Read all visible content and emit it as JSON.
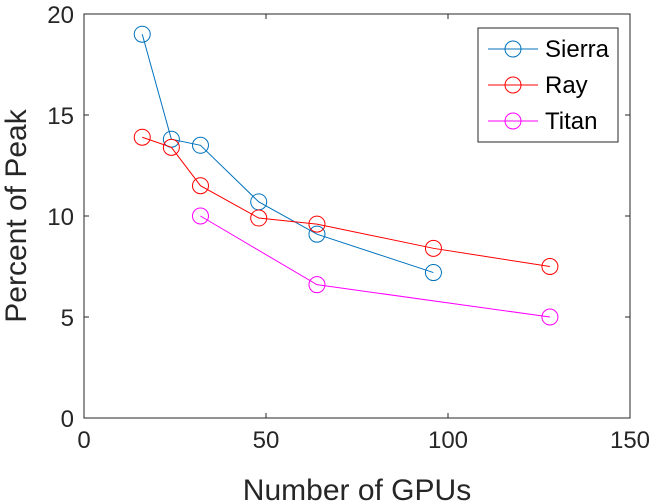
{
  "chart_data": {
    "type": "line",
    "title": "",
    "xlabel": "Number of GPUs",
    "ylabel": "Percent of Peak",
    "xlim": [
      0,
      150
    ],
    "ylim": [
      0,
      20
    ],
    "xticks": [
      0,
      50,
      100,
      150
    ],
    "yticks": [
      0,
      5,
      10,
      15,
      20
    ],
    "grid": false,
    "legend_position": "top-right",
    "marker": "circle",
    "series": [
      {
        "name": "Sierra",
        "color": "#0072BD",
        "x": [
          16,
          24,
          32,
          48,
          64,
          96
        ],
        "y": [
          19.0,
          13.8,
          13.5,
          10.7,
          9.1,
          7.2
        ]
      },
      {
        "name": "Ray",
        "color": "#FF0000",
        "x": [
          16,
          24,
          32,
          48,
          64,
          96,
          128
        ],
        "y": [
          13.9,
          13.4,
          11.5,
          9.9,
          9.6,
          8.4,
          7.5
        ]
      },
      {
        "name": "Titan",
        "color": "#FF00FF",
        "x": [
          32,
          64,
          128
        ],
        "y": [
          10.0,
          6.6,
          5.0
        ]
      }
    ]
  }
}
